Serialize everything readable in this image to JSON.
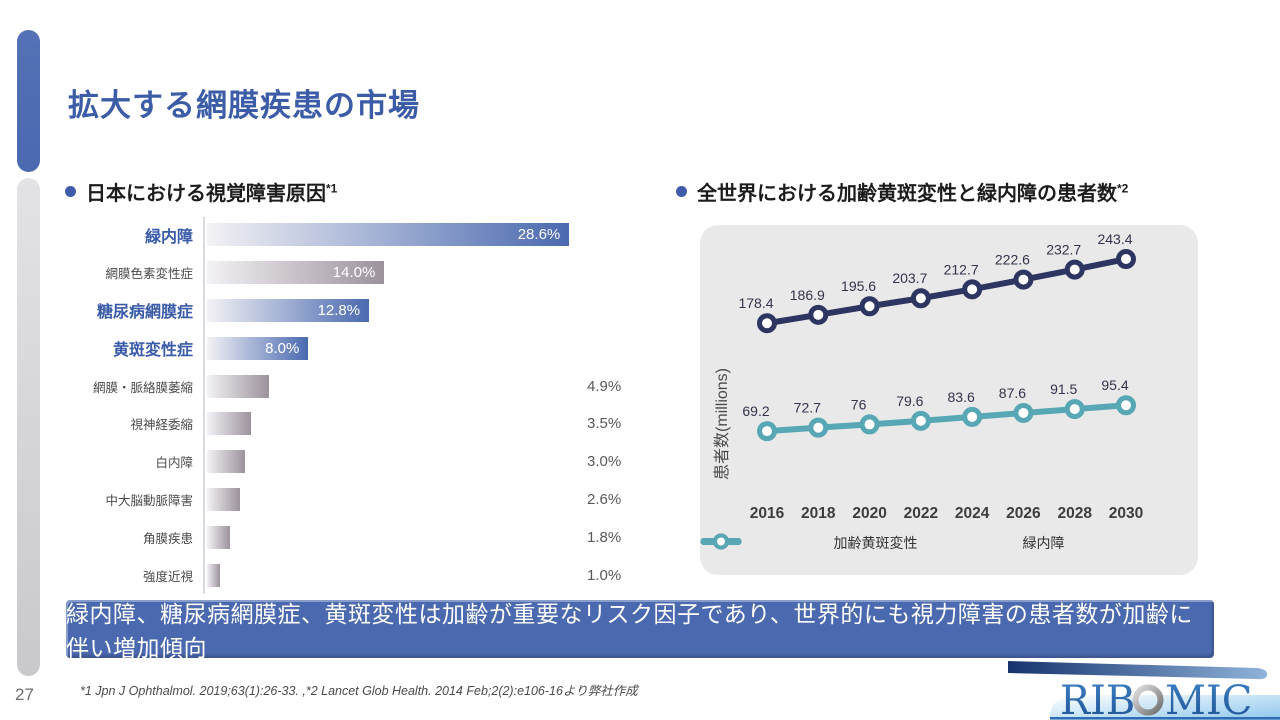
{
  "slide": {
    "title": "拡大する網膜疾患の市場",
    "page_number": "27",
    "footnote": "*1 Jpn J Ophthalmol. 2019;63(1):26-33. ,*2  Lancet Glob Health. 2014 Feb;2(2):e106-16より弊社作成",
    "banner_text": "緑内障、糖尿病網膜症、黄斑変性は加齢が重要なリスク因子であり、世界的にも視力障害の患者数が加齢に伴い増加傾向",
    "logo": {
      "full_name": "RIBOMIC",
      "left": "RIB",
      "o": "O",
      "right": "MIC"
    }
  },
  "sections": {
    "left": {
      "heading": "日本における視覚障害原因",
      "heading_ref": "*1"
    },
    "right": {
      "heading": "全世界における加齢黄斑変性と緑内障の患者数",
      "heading_ref": "*2"
    }
  },
  "colors": {
    "title_blue": "#3c5ca8",
    "accent_blue": "#4a69b0",
    "bar_blue": "#4a69b0",
    "bar_gray": "#9c929c",
    "bar_light": "#f3f2f5",
    "line_navy": "#2d3561",
    "line_teal": "#57a7b5",
    "banner_blue": "#4b69ae",
    "panel_gray": "#e9e9e9"
  },
  "chart_data": [
    {
      "type": "bar",
      "orientation": "horizontal",
      "title": "日本における視覚障害原因*1",
      "categories": [
        "緑内障",
        "網膜色素変性症",
        "糖尿病網膜症",
        "黄斑変性症",
        "網膜・脈絡膜萎縮",
        "視神経委縮",
        "白内障",
        "中大脳動脈障害",
        "角膜疾患",
        "強度近視"
      ],
      "values": [
        28.6,
        14.0,
        12.8,
        8.0,
        4.9,
        3.5,
        3.0,
        2.6,
        1.8,
        1.0
      ],
      "value_labels": [
        "28.6%",
        "14.0%",
        "12.8%",
        "8.0%",
        "4.9%",
        "3.5%",
        "3.0%",
        "2.6%",
        "1.8%",
        "1.0%"
      ],
      "highlighted": [
        true,
        false,
        true,
        true,
        false,
        false,
        false,
        false,
        false,
        false
      ],
      "xlim": [
        0,
        30
      ],
      "grid": false
    },
    {
      "type": "line",
      "title": "全世界における加齢黄斑変性と緑内障の患者数*2",
      "x": [
        2016,
        2018,
        2020,
        2022,
        2024,
        2026,
        2028,
        2030
      ],
      "series": [
        {
          "name": "加齢黄斑変性",
          "color": "#2d3561",
          "values": [
            178.4,
            186.9,
            195.6,
            203.7,
            212.7,
            222.6,
            232.7,
            243.4
          ]
        },
        {
          "name": "緑内障",
          "color": "#57a7b5",
          "values": [
            69.2,
            72.7,
            76,
            79.6,
            83.6,
            87.6,
            91.5,
            95.4
          ]
        }
      ],
      "ylabel": "患者数(millions)",
      "legend_position": "bottom",
      "grid": false
    }
  ]
}
